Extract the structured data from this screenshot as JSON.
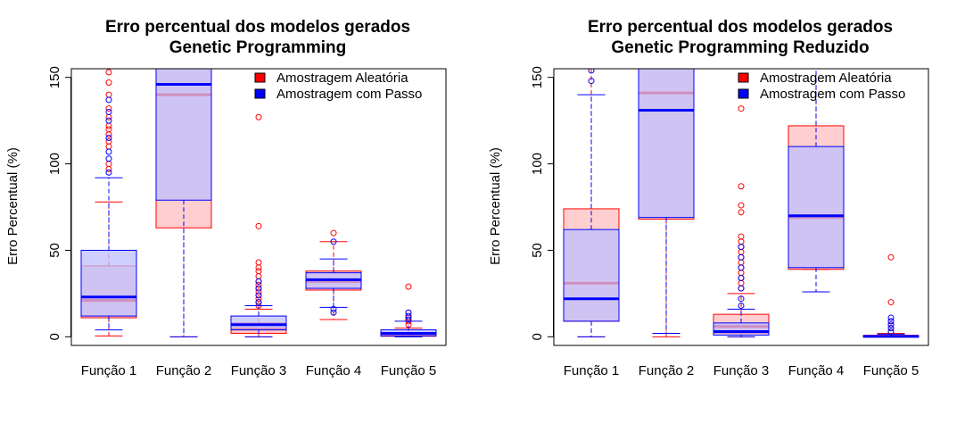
{
  "chart_data": [
    {
      "type": "boxplot",
      "title": "Erro percentual dos modelos gerados",
      "subtitle": "Genetic Programming",
      "xlabel": "",
      "ylabel": "Erro Percentual (%)",
      "ylim": [
        -5,
        155
      ],
      "yticks": [
        0,
        50,
        100,
        150
      ],
      "categories": [
        "Função 1",
        "Função 2",
        "Função 3",
        "Função 4",
        "Função 5"
      ],
      "legend": {
        "position": "top-right",
        "entries": [
          "Amostragem Aleatória",
          "Amostragem com Passo"
        ]
      },
      "series": [
        {
          "name": "Amostragem Aleatória",
          "color": "#ff0000",
          "fill": "#ffbfbf",
          "boxes": [
            {
              "lo": 0.5,
              "q1": 11,
              "med": 21,
              "q3": 41,
              "hi": 78,
              "out": [
                97,
                100,
                110,
                113,
                117,
                120,
                122,
                127,
                132,
                140,
                147,
                153
              ]
            },
            {
              "lo": 0,
              "q1": 63,
              "med": 140,
              "q3": 160,
              "hi": 160,
              "out": []
            },
            {
              "lo": 0,
              "q1": 2,
              "med": 4.5,
              "q3": 8,
              "hi": 16,
              "out": [
                18,
                20,
                22,
                24,
                26,
                28,
                30,
                32,
                35,
                38,
                40,
                43,
                64,
                127
              ]
            },
            {
              "lo": 10,
              "q1": 27,
              "med": 32,
              "q3": 38,
              "hi": 55,
              "out": [
                60
              ]
            },
            {
              "lo": 0,
              "q1": 0.3,
              "med": 1,
              "q3": 2,
              "hi": 5,
              "out": [
                7,
                9,
                11,
                14,
                29
              ]
            }
          ]
        },
        {
          "name": "Amostragem com Passo",
          "color": "#0000ff",
          "fill": "#bfbfff",
          "boxes": [
            {
              "lo": 4,
              "q1": 12,
              "med": 23,
              "q3": 50,
              "hi": 92,
              "out": [
                95,
                103,
                107,
                115,
                125,
                130,
                137
              ]
            },
            {
              "lo": 0,
              "q1": 79,
              "med": 146,
              "q3": 160,
              "hi": 160,
              "out": []
            },
            {
              "lo": 0,
              "q1": 4,
              "med": 7,
              "q3": 12,
              "hi": 18,
              "out": [
                20,
                24,
                28,
                32
              ]
            },
            {
              "lo": 17,
              "q1": 28,
              "med": 33,
              "q3": 37,
              "hi": 45,
              "out": [
                14,
                16,
                55
              ]
            },
            {
              "lo": 0,
              "q1": 0.5,
              "med": 2,
              "q3": 4,
              "hi": 9,
              "out": [
                10,
                12,
                14
              ]
            }
          ]
        }
      ]
    },
    {
      "type": "boxplot",
      "title": "Erro percentual dos modelos gerados",
      "subtitle": "Genetic Programming Reduzido",
      "xlabel": "",
      "ylabel": "Erro Percentual (%)",
      "ylim": [
        -5,
        155
      ],
      "yticks": [
        0,
        50,
        100,
        150
      ],
      "categories": [
        "Função 1",
        "Função 2",
        "Função 3",
        "Função 4",
        "Função 5"
      ],
      "legend": {
        "position": "top-right",
        "entries": [
          "Amostragem Aleatória",
          "Amostragem com Passo"
        ]
      },
      "series": [
        {
          "name": "Amostragem Aleatória",
          "color": "#ff0000",
          "fill": "#ffbfbf",
          "boxes": [
            {
              "lo": 0,
              "q1": 9,
              "med": 31,
              "q3": 74,
              "hi": 160,
              "out": []
            },
            {
              "lo": 0,
              "q1": 68,
              "med": 141,
              "q3": 160,
              "hi": 160,
              "out": []
            },
            {
              "lo": 0,
              "q1": 2,
              "med": 6,
              "q3": 13,
              "hi": 25,
              "out": [
                28,
                31,
                34,
                37,
                40,
                43,
                46,
                49,
                52,
                55,
                58,
                72,
                76,
                87,
                132,
                140
              ]
            },
            {
              "lo": 39,
              "q1": 39,
              "med": 69,
              "q3": 122,
              "hi": 160,
              "out": []
            },
            {
              "lo": 0,
              "q1": 0,
              "med": 0.3,
              "q3": 0.8,
              "hi": 2,
              "out": [
                3,
                5,
                7,
                9,
                20,
                46
              ]
            }
          ]
        },
        {
          "name": "Amostragem com Passo",
          "color": "#0000ff",
          "fill": "#bfbfff",
          "boxes": [
            {
              "lo": 0,
              "q1": 9,
              "med": 22,
              "q3": 62,
              "hi": 140,
              "out": [
                148,
                154
              ]
            },
            {
              "lo": 2,
              "q1": 69,
              "med": 131,
              "q3": 160,
              "hi": 160,
              "out": []
            },
            {
              "lo": 0,
              "q1": 1,
              "med": 3,
              "q3": 8,
              "hi": 16,
              "out": [
                18,
                22,
                28,
                34,
                40,
                46,
                52
              ]
            },
            {
              "lo": 26,
              "q1": 40,
              "med": 70,
              "q3": 110,
              "hi": 160,
              "out": []
            },
            {
              "lo": 0,
              "q1": 0,
              "med": 0.2,
              "q3": 0.5,
              "hi": 1.5,
              "out": [
                3,
                5,
                7,
                9,
                11
              ]
            }
          ]
        }
      ]
    }
  ]
}
